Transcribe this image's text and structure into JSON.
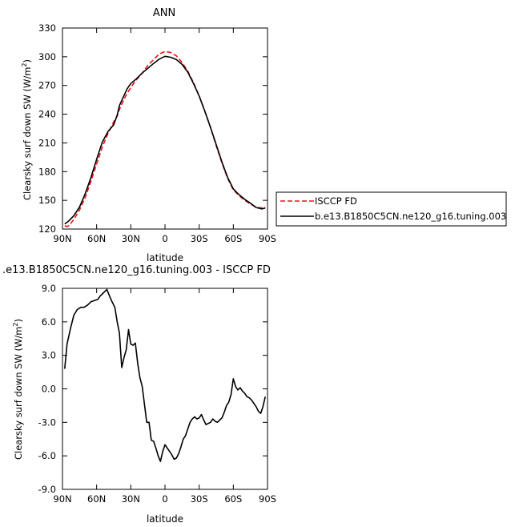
{
  "chart_data": [
    {
      "type": "line",
      "title": "ANN",
      "xlabel": "latitude",
      "ylabel": "Clearsky surf down SW (W/m",
      "ylabel_sup": "2",
      "ylabel_end": ")",
      "xlim": [
        90,
        -90
      ],
      "ylim": [
        120,
        330
      ],
      "xticks": [
        90,
        60,
        30,
        0,
        -30,
        -60,
        -90
      ],
      "xtick_labels": [
        "90N",
        "60N",
        "30N",
        "0",
        "30S",
        "60S",
        "90S"
      ],
      "yticks": [
        120,
        150,
        180,
        210,
        240,
        270,
        300,
        330
      ],
      "ytick_labels": [
        "120",
        "150",
        "180",
        "210",
        "240",
        "270",
        "300",
        "330"
      ],
      "grid": false,
      "legend_position": "right",
      "series": [
        {
          "name": "ISCCP FD",
          "color": "#e8141c",
          "dash": "dashed",
          "x": [
            88,
            86,
            84,
            80,
            75,
            70,
            65,
            60,
            55,
            50,
            45,
            42,
            40,
            35,
            30,
            25,
            20,
            15,
            10,
            5,
            0,
            -5,
            -10,
            -15,
            -20,
            -25,
            -30,
            -35,
            -40,
            -45,
            -50,
            -55,
            -60,
            -65,
            -70,
            -75,
            -80,
            -85,
            -88
          ],
          "y": [
            123.5,
            122.5,
            124,
            130,
            140,
            153,
            170,
            188,
            206,
            220,
            232,
            238,
            245,
            258,
            268,
            276,
            283,
            291,
            297,
            303,
            305.5,
            304.5,
            301,
            294,
            285,
            273,
            259,
            243,
            226,
            207,
            189,
            173,
            161,
            155,
            150,
            146,
            143,
            142,
            143
          ]
        },
        {
          "name": "b.e13.B1850C5CN.ne120_g16.tuning.003",
          "color": "#000000",
          "dash": "solid",
          "x": [
            88,
            86,
            84,
            80,
            75,
            70,
            65,
            60,
            55,
            50,
            45,
            42,
            40,
            35,
            33,
            30,
            25,
            20,
            15,
            10,
            5,
            0,
            -5,
            -10,
            -15,
            -20,
            -25,
            -30,
            -35,
            -40,
            -45,
            -50,
            -55,
            -60,
            -65,
            -70,
            -75,
            -80,
            -85,
            -88
          ],
          "y": [
            125.5,
            127,
            129,
            134,
            143,
            157,
            174,
            193,
            211,
            222,
            229,
            239,
            249,
            262,
            267,
            272,
            277,
            283,
            288,
            293,
            297.5,
            300.5,
            299.5,
            297,
            292,
            284,
            272,
            259,
            243,
            226,
            208,
            190,
            174,
            162,
            156,
            151,
            147,
            142.5,
            141,
            142
          ]
        }
      ]
    },
    {
      "type": "line",
      "title": ".e13.B1850C5CN.ne120_g16.tuning.003 - ISCCP FD",
      "xlabel": "latitude",
      "ylabel": "Clearsky surf down SW (W/m",
      "ylabel_sup": "2",
      "ylabel_end": ")",
      "xlim": [
        90,
        -90
      ],
      "ylim": [
        -9,
        9
      ],
      "xticks": [
        90,
        60,
        30,
        0,
        -30,
        -60,
        -90
      ],
      "xtick_labels": [
        "90N",
        "60N",
        "30N",
        "0",
        "30S",
        "60S",
        "90S"
      ],
      "yticks": [
        -9,
        -6,
        -3,
        0,
        3,
        6,
        9
      ],
      "ytick_labels": [
        "-9.0",
        "-6.0",
        "-3.0",
        "0.0",
        "3.0",
        "6.0",
        "9.0"
      ],
      "grid": false,
      "series": [
        {
          "color": "#000000",
          "x": [
            88,
            86,
            83,
            80,
            77,
            74,
            71,
            68,
            65,
            62,
            59,
            57,
            55,
            53,
            51,
            49,
            47,
            44,
            42,
            40,
            38,
            36,
            34,
            32,
            30,
            28,
            26,
            24,
            22,
            20,
            18,
            16,
            14,
            12,
            10,
            8,
            6,
            4,
            2,
            0,
            -2,
            -4,
            -6,
            -8,
            -10,
            -12,
            -14,
            -16,
            -18,
            -20,
            -22,
            -24,
            -26,
            -28,
            -30,
            -32,
            -34,
            -36,
            -38,
            -40,
            -42,
            -44,
            -46,
            -48,
            -50,
            -52,
            -54,
            -56,
            -58,
            -60,
            -62,
            -64,
            -66,
            -68,
            -70,
            -72,
            -74,
            -76,
            -78,
            -80,
            -82,
            -84,
            -86,
            -88
          ],
          "y": [
            1.8,
            4.0,
            5.4,
            6.6,
            7.1,
            7.3,
            7.3,
            7.5,
            7.8,
            7.9,
            8.0,
            8.3,
            8.5,
            8.7,
            8.9,
            8.4,
            7.9,
            7.3,
            6.0,
            5.0,
            1.9,
            2.8,
            3.5,
            5.3,
            4.0,
            3.9,
            4.1,
            2.3,
            1.0,
            0.2,
            -1.4,
            -3.0,
            -3.0,
            -4.6,
            -4.7,
            -5.3,
            -6.0,
            -6.5,
            -5.6,
            -5.0,
            -5.3,
            -5.6,
            -5.9,
            -6.3,
            -6.2,
            -5.8,
            -5.2,
            -4.5,
            -4.2,
            -3.6,
            -3.0,
            -2.7,
            -2.5,
            -2.7,
            -2.6,
            -2.3,
            -2.8,
            -3.2,
            -3.1,
            -3.0,
            -2.7,
            -2.9,
            -3.0,
            -2.8,
            -2.6,
            -2.1,
            -1.5,
            -1.2,
            -0.5,
            0.9,
            0.2,
            -0.1,
            0.1,
            -0.2,
            -0.4,
            -0.7,
            -0.8,
            -1.0,
            -1.3,
            -1.6,
            -2.0,
            -2.2,
            -1.6,
            -0.7
          ]
        }
      ]
    }
  ]
}
